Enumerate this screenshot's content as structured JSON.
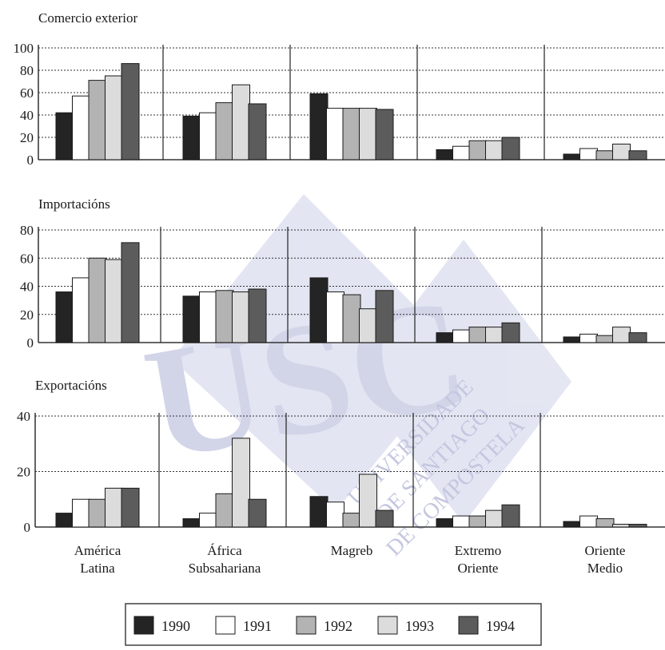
{
  "chart_data": {
    "type": "bar",
    "categories": [
      [
        "América",
        "Latina"
      ],
      [
        "África",
        "Subsahariana"
      ],
      [
        "Magreb"
      ],
      [
        "Extremo",
        "Oriente"
      ],
      [
        "Oriente",
        "Medio"
      ]
    ],
    "series_names": [
      "1990",
      "1991",
      "1992",
      "1993",
      "1994"
    ],
    "series_colors": [
      "#242424",
      "#ffffff",
      "#b3b3b3",
      "#dcdcdc",
      "#5c5c5c"
    ],
    "grid": true,
    "legend_position": "bottom-center",
    "panels": [
      {
        "title": "Comercio exterior",
        "ylim": [
          0,
          100
        ],
        "yticks": [
          0,
          20,
          40,
          60,
          80,
          100
        ],
        "series": [
          {
            "name": "1990",
            "values": [
              42,
              39,
              59,
              9,
              5
            ]
          },
          {
            "name": "1991",
            "values": [
              57,
              42,
              46,
              12,
              10
            ]
          },
          {
            "name": "1992",
            "values": [
              71,
              51,
              46,
              17,
              8
            ]
          },
          {
            "name": "1993",
            "values": [
              75,
              67,
              46,
              17,
              14
            ]
          },
          {
            "name": "1994",
            "values": [
              86,
              50,
              45,
              20,
              8
            ]
          }
        ]
      },
      {
        "title": "Importacións",
        "ylim": [
          0,
          80
        ],
        "yticks": [
          0,
          20,
          40,
          60,
          80
        ],
        "series": [
          {
            "name": "1990",
            "values": [
              36,
              33,
              46,
              7,
              4
            ]
          },
          {
            "name": "1991",
            "values": [
              46,
              36,
              36,
              9,
              6
            ]
          },
          {
            "name": "1992",
            "values": [
              60,
              37,
              34,
              11,
              5
            ]
          },
          {
            "name": "1993",
            "values": [
              59,
              36,
              24,
              11,
              11
            ]
          },
          {
            "name": "1994",
            "values": [
              71,
              38,
              37,
              14,
              7
            ]
          }
        ]
      },
      {
        "title": "Exportacións",
        "ylim": [
          0,
          40
        ],
        "yticks": [
          0,
          20,
          40
        ],
        "series": [
          {
            "name": "1990",
            "values": [
              5,
              3,
              11,
              3,
              2
            ]
          },
          {
            "name": "1991",
            "values": [
              10,
              5,
              9,
              4,
              4
            ]
          },
          {
            "name": "1992",
            "values": [
              10,
              12,
              5,
              4,
              3
            ]
          },
          {
            "name": "1993",
            "values": [
              14,
              32,
              19,
              6,
              1
            ]
          },
          {
            "name": "1994",
            "values": [
              14,
              10,
              6,
              8,
              1
            ]
          }
        ]
      }
    ]
  },
  "watermark": {
    "logo_text": "USC",
    "lines": [
      "UNIVERSIDADE",
      "DE SANTIAGO",
      "DE COMPOSTELA"
    ],
    "color": "#c9cde6"
  }
}
